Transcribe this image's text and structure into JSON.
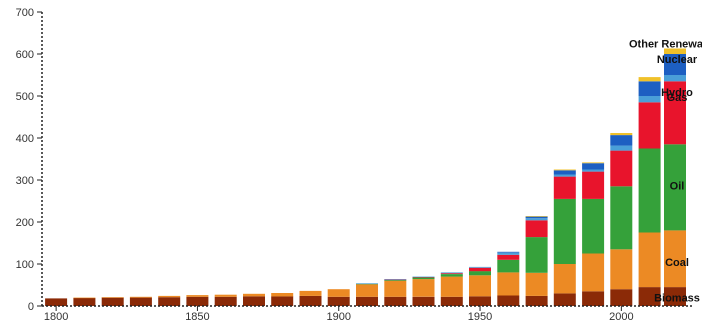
{
  "chart_data": {
    "type": "bar",
    "stacked": true,
    "title": "",
    "xlabel": "",
    "ylabel": "",
    "ylim": [
      0,
      700
    ],
    "xlim": [
      1795,
      2025
    ],
    "y_ticks": [
      0,
      100,
      200,
      300,
      400,
      500,
      600,
      700
    ],
    "x_ticks": [
      1800,
      1850,
      1900,
      1950,
      2000
    ],
    "grid": false,
    "legend": "inline labels beside the last bar",
    "x": [
      1800,
      1810,
      1820,
      1830,
      1840,
      1850,
      1860,
      1870,
      1880,
      1890,
      1900,
      1910,
      1920,
      1930,
      1940,
      1950,
      1960,
      1970,
      1980,
      1990,
      2000,
      2010,
      2019
    ],
    "series": [
      {
        "name": "Biomass",
        "color": "#8b2a07",
        "values": [
          18,
          19,
          20,
          20,
          21,
          22,
          22,
          23,
          23,
          24,
          22,
          22,
          22,
          22,
          22,
          23,
          25,
          24,
          30,
          35,
          40,
          45,
          45
        ]
      },
      {
        "name": "Coal",
        "color": "#ec8a24",
        "values": [
          0,
          1,
          1,
          2,
          3,
          4,
          5,
          6,
          8,
          12,
          18,
          30,
          38,
          42,
          48,
          50,
          55,
          55,
          70,
          90,
          95,
          130,
          135
        ]
      },
      {
        "name": "Oil",
        "color": "#35a13a",
        "values": [
          0,
          0,
          0,
          0,
          0,
          0,
          0,
          0,
          0,
          0,
          0,
          1,
          2,
          4,
          6,
          10,
          30,
          85,
          155,
          130,
          150,
          200,
          205
        ]
      },
      {
        "name": "Gas",
        "color": "#e8142c",
        "values": [
          0,
          0,
          0,
          0,
          0,
          0,
          0,
          0,
          0,
          0,
          0,
          0,
          1,
          1,
          2,
          8,
          12,
          40,
          53,
          65,
          85,
          110,
          150
        ]
      },
      {
        "name": "Hydro",
        "color": "#4a9fd8",
        "values": [
          0,
          0,
          0,
          0,
          0,
          0,
          0,
          0,
          0,
          0,
          0,
          1,
          1,
          1,
          2,
          2,
          5,
          5,
          5,
          5,
          12,
          15,
          15
        ]
      },
      {
        "name": "Nuclear",
        "color": "#1d5fc2",
        "values": [
          0,
          0,
          0,
          0,
          0,
          0,
          0,
          0,
          0,
          0,
          0,
          0,
          0,
          0,
          0,
          0,
          2,
          4,
          10,
          15,
          25,
          35,
          50
        ]
      },
      {
        "name": "Other Renewables",
        "color": "#f0c12a",
        "values": [
          0,
          0,
          0,
          0,
          0,
          0,
          0,
          0,
          0,
          0,
          0,
          0,
          0,
          0,
          0,
          0,
          0,
          1,
          2,
          2,
          5,
          10,
          13
        ]
      }
    ]
  }
}
